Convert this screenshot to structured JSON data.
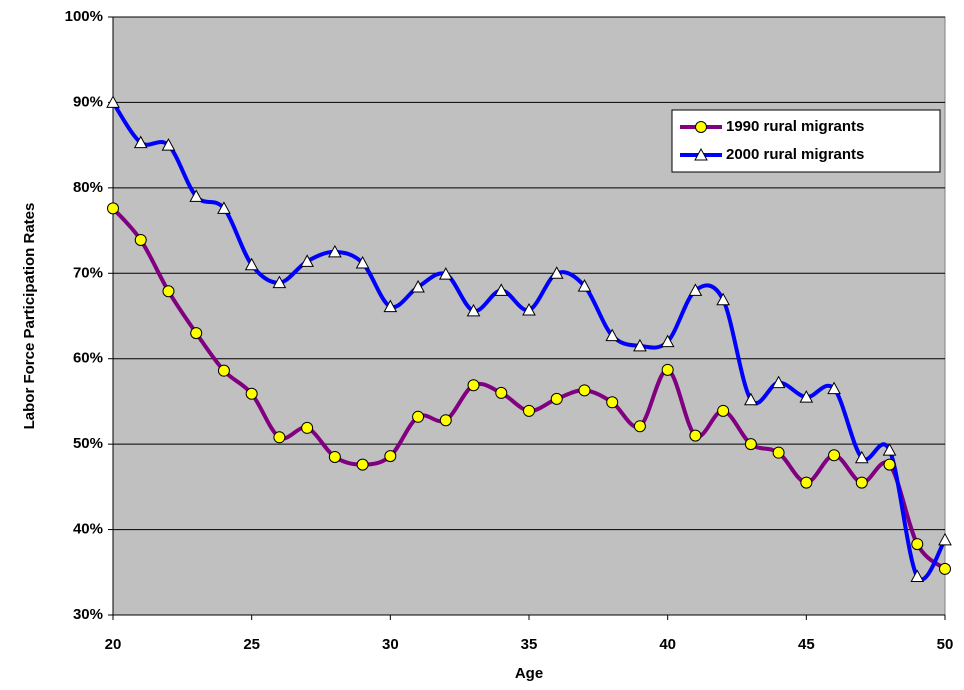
{
  "chart_data": {
    "type": "line",
    "x_label": "Age",
    "y_label": "Labor Force Participation Rates",
    "x": [
      20,
      21,
      22,
      23,
      24,
      25,
      26,
      27,
      28,
      29,
      30,
      31,
      32,
      33,
      34,
      35,
      36,
      37,
      38,
      39,
      40,
      41,
      42,
      43,
      44,
      45,
      46,
      47,
      48,
      49,
      50
    ],
    "series": [
      {
        "name": "1990 rural migrants",
        "color": "#800080",
        "marker": "circle",
        "marker_color": "#ffff00",
        "values": [
          77.6,
          73.9,
          67.9,
          63.0,
          58.6,
          55.9,
          50.8,
          51.9,
          48.5,
          47.6,
          48.6,
          53.2,
          52.8,
          56.9,
          56.0,
          53.9,
          55.3,
          56.3,
          54.9,
          52.1,
          58.7,
          51.0,
          53.9,
          50.0,
          49.0,
          45.5,
          48.7,
          45.5,
          47.6,
          38.3,
          35.4
        ]
      },
      {
        "name": "2000 rural migrants",
        "color": "#0000ff",
        "marker": "triangle",
        "marker_color": "#ffffff",
        "values": [
          90.0,
          85.3,
          85.0,
          79.0,
          77.6,
          71.0,
          68.9,
          71.4,
          72.5,
          71.2,
          66.1,
          68.4,
          69.9,
          65.6,
          68.0,
          65.7,
          70.0,
          68.5,
          62.7,
          61.5,
          62.0,
          68.0,
          66.9,
          55.2,
          57.2,
          55.5,
          56.5,
          48.4,
          49.3,
          34.5,
          38.8
        ]
      }
    ],
    "xlim": [
      20,
      50
    ],
    "xticks": [
      20,
      25,
      30,
      35,
      40,
      45,
      50
    ],
    "ylim": [
      30,
      100
    ],
    "yticks": [
      {
        "value": 30,
        "label": "30%"
      },
      {
        "value": 40,
        "label": "40%"
      },
      {
        "value": 50,
        "label": "50%"
      },
      {
        "value": 60,
        "label": "60%"
      },
      {
        "value": 70,
        "label": "70%"
      },
      {
        "value": 80,
        "label": "80%"
      },
      {
        "value": 90,
        "label": "90%"
      },
      {
        "value": 100,
        "label": "100%"
      }
    ],
    "grid": true,
    "smooth": true,
    "legend": "upper-right",
    "plot_background": "#c0c0c0"
  }
}
